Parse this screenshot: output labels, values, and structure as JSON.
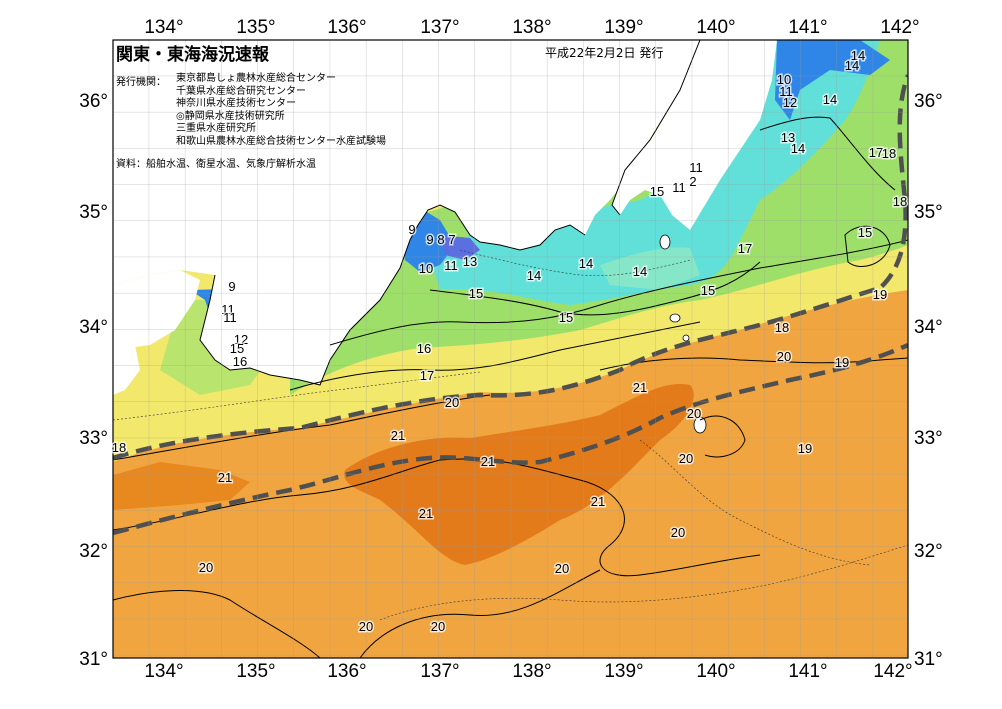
{
  "header": {
    "title": "関東・東海海況速報",
    "issue_date": "平成22年2月2日 発行",
    "org_label": "発行機関：",
    "organizations": [
      "東京都島しょ農林水産総合センター",
      "千葉県水産総合研究センター",
      "神奈川県水産技術センター",
      "◎静岡県水産技術研究所",
      "三重県水産研究所",
      "和歌山県農林水産総合技術センター水産試験場"
    ],
    "source": "資料：船舶水温、衛星水温、気象庁解析水温"
  },
  "axes": {
    "lon_labels": [
      "134°",
      "135°",
      "136°",
      "137°",
      "138°",
      "139°",
      "140°",
      "141°",
      "142°"
    ],
    "lat_labels": [
      "36°",
      "35°",
      "34°",
      "33°",
      "32°",
      "31°"
    ]
  },
  "isotherm_labels": [
    "14",
    "14",
    "10",
    "11",
    "12",
    "14",
    "13",
    "14",
    "17",
    "18",
    "18",
    "11",
    "11",
    "2",
    "15",
    "15",
    "17",
    "9",
    "9",
    "8",
    "7",
    "10",
    "11",
    "13",
    "14",
    "14",
    "14",
    "15",
    "15",
    "15",
    "19",
    "9",
    "11",
    "11",
    "12",
    "15",
    "16",
    "16",
    "18",
    "17",
    "20",
    "19",
    "20",
    "21",
    "21",
    "21",
    "20",
    "20",
    "19",
    "18",
    "21",
    "21",
    "21",
    "20",
    "20",
    "20",
    "20",
    "20"
  ],
  "colors": {
    "ocean_warm": "#f0a540",
    "ocean_warmest": "#e37b1a",
    "cool_yellow": "#f2e86c",
    "cool_green": "#9edf6a",
    "cold_cyan": "#60e0d8",
    "coldest_blue": "#2f86e6",
    "land": "#ffffff",
    "kuroshio_axis": "#505050"
  }
}
